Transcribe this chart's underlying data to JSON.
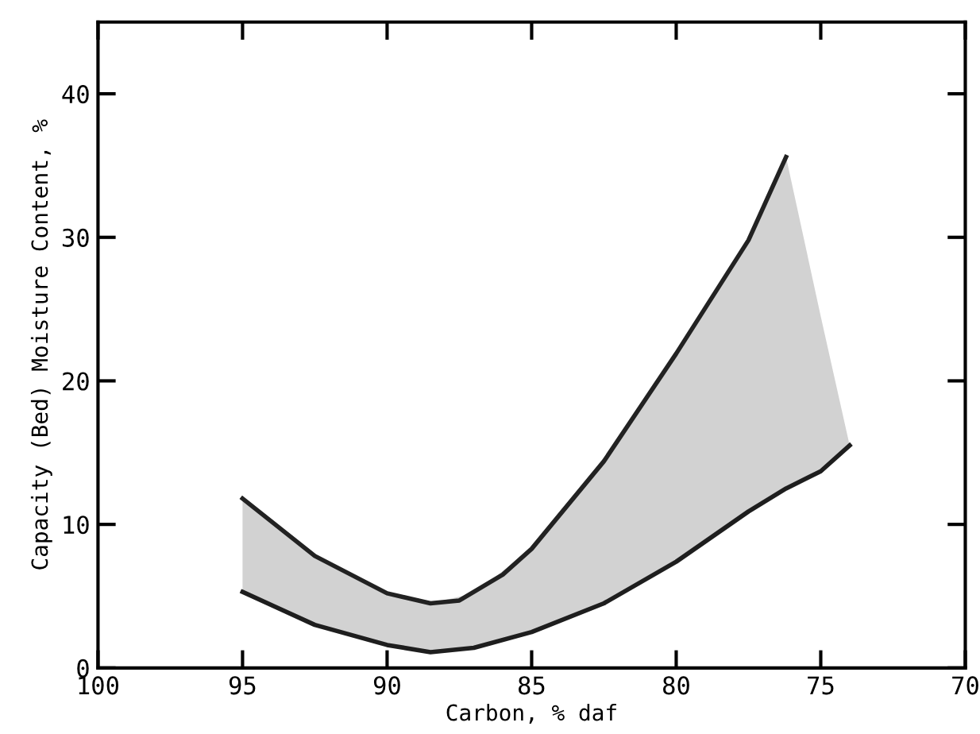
{
  "chart_data": {
    "type": "line",
    "xlabel": "Carbon, % daf",
    "ylabel": "Capacity (Bed) Moisture Content, %",
    "xlim": [
      100,
      70
    ],
    "ylim": [
      0,
      45
    ],
    "xticks": [
      100,
      95,
      90,
      85,
      80,
      75,
      70
    ],
    "yticks": [
      0,
      10,
      20,
      30,
      40
    ],
    "grid": false,
    "marker": "none",
    "line_style": "solid",
    "series": [
      {
        "color": "#222222",
        "x": [
          95,
          92.5,
          90,
          88.5,
          87.5,
          86,
          85,
          82.5,
          80,
          77.5,
          76.2
        ],
        "values": [
          11.8,
          7.8,
          5.2,
          4.5,
          4.7,
          6.5,
          8.3,
          14.4,
          21.9,
          29.8,
          35.6
        ]
      },
      {
        "color": "#1e1e1e",
        "x": [
          95,
          92.5,
          90,
          88.5,
          87,
          85,
          82.5,
          80,
          77.5,
          76.2,
          75,
          74
        ],
        "values": [
          5.3,
          3.0,
          1.6,
          1.1,
          1.4,
          2.5,
          4.5,
          7.4,
          10.9,
          12.5,
          13.7,
          15.5
        ],
        "lower": [
          5.3,
          3.0,
          1.6,
          1.1,
          1.4,
          2.5,
          4.5,
          7.4,
          10.9,
          12.5,
          13.7,
          15.5
        ],
        "upper": [
          11.8,
          7.8,
          5.2,
          4.5,
          5.2,
          8.3,
          14.4,
          21.9,
          29.8,
          35.6,
          24.5,
          15.5
        ]
      }
    ]
  }
}
